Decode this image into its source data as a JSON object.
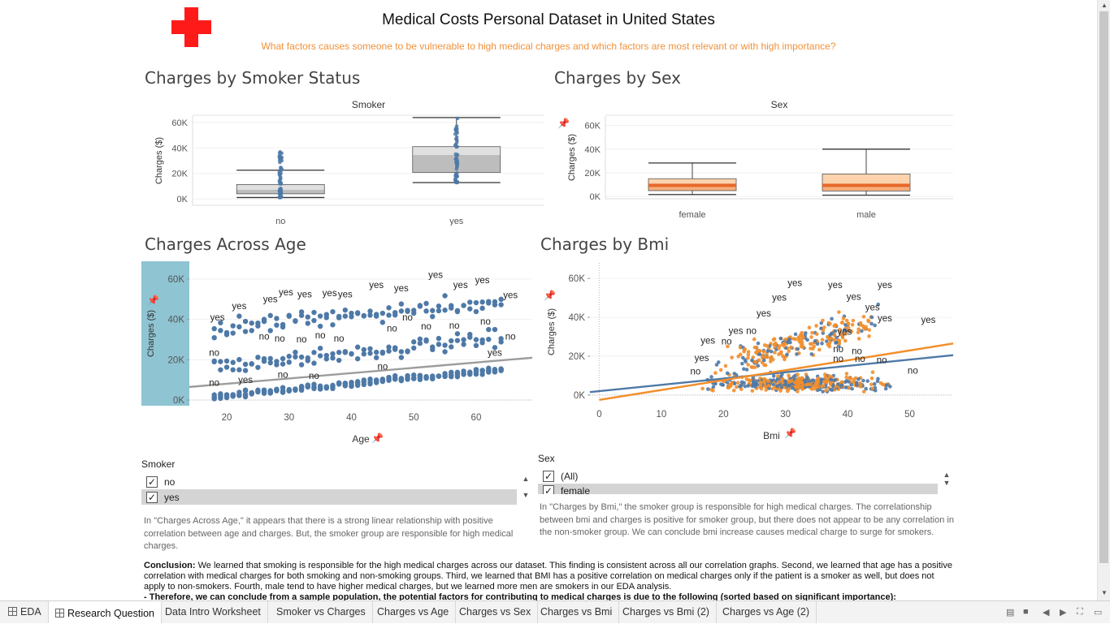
{
  "header": {
    "title": "Medical Costs Personal Dataset in United States",
    "subtitle": "What factors causes someone to be vulnerable to high medical charges and which factors are most relevant or with high importance?",
    "logo_icon": "red-cross-icon",
    "accent_color": "#f0913a",
    "logo_color": "#ff1a1a"
  },
  "sheets": {
    "smoker": "Charges by Smoker Status",
    "sex": "Charges by Sex",
    "age": "Charges Across Age",
    "bmi": "Charges by Bmi"
  },
  "filters": {
    "smoker": {
      "title": "Smoker",
      "items": [
        {
          "label": "no",
          "checked": true
        },
        {
          "label": "yes",
          "checked": true,
          "highlighted": true
        }
      ]
    },
    "sex": {
      "title": "Sex",
      "items": [
        {
          "label": "(All)",
          "checked": true
        },
        {
          "label": "female",
          "checked": true,
          "highlighted": true
        }
      ]
    }
  },
  "notes": {
    "age": "In \"Charges Across Age,\" it appears that there is a strong linear relationship with positive correlation between age and charges. But, the smoker group are responsible for high medical charges.",
    "bmi": "In \"Charges by Bmi,\" the smoker group is responsible for high medical charges. The correlationship between bmi and charges is positive for smoker group, but there does not appear to be any correlation in the non-smoker group. We can conclude bmi increase causes medical charge to surge for smokers."
  },
  "conclusion": {
    "label": "Conclusion:",
    "text": " We learned that smoking is responsible for the high medical charges across our dataset. This finding is consistent across all our correlation graphs. Second, we learned that age has a positive correlation with medical charges for both smoking and non-smoking groups. Third, we learned that BMI has a positive correlation on medical charges only if the patient is a smoker as well, but does not apply to non-smokers. Fourth, male tend to have higher medical charges, but we learned more men are smokers in our EDA analysis.",
    "therefore": "- Therefore, we can conclude from a sample population, the potential factors for contributing to medical charges is due to the following (sorted based on significant importance):"
  },
  "tabs": [
    {
      "label": "EDA",
      "icon": "grid-icon"
    },
    {
      "label": "Research Question",
      "icon": "grid-icon",
      "active": true
    },
    {
      "label": "Data Intro Worksheet"
    },
    {
      "label": "Smoker vs Charges"
    },
    {
      "label": "Charges vs Age"
    },
    {
      "label": "Charges vs Sex"
    },
    {
      "label": "Charges vs Bmi"
    },
    {
      "label": "Charges vs Bmi (2)"
    },
    {
      "label": "Charges vs Age (2)"
    }
  ],
  "chart_data": [
    {
      "id": "smoker_box",
      "type": "box",
      "header": "Smoker",
      "categories": [
        "no",
        "yes"
      ],
      "ylabel": "Charges ($)",
      "yticks": [
        "0K",
        "20K",
        "40K",
        "60K"
      ],
      "ylim": [
        -5000,
        65000
      ],
      "boxes": [
        {
          "category": "no",
          "min": 1100,
          "q1": 4000,
          "median": 7300,
          "q3": 11300,
          "max": 22500,
          "outlier_max": 37000
        },
        {
          "category": "yes",
          "min": 12800,
          "q1": 20800,
          "median": 34500,
          "q3": 41000,
          "max": 63800
        }
      ],
      "colors": {
        "box_light": "#e0e0e0",
        "box_dark": "#bdbdbd",
        "points": "#4e79a7"
      }
    },
    {
      "id": "sex_box",
      "type": "box",
      "header": "Sex",
      "categories": [
        "female",
        "male"
      ],
      "ylabel": "Charges ($)",
      "yticks": [
        "0K",
        "20K",
        "40K",
        "60K"
      ],
      "ylim": [
        -2000,
        68000
      ],
      "boxes": [
        {
          "category": "female",
          "min": 1600,
          "q1": 4900,
          "median": 9400,
          "q3": 15000,
          "max": 28300
        },
        {
          "category": "male",
          "min": 1100,
          "q1": 4600,
          "median": 9400,
          "q3": 19000,
          "max": 40000
        }
      ],
      "colors": {
        "box_light": "#fcd3ad",
        "box_dark": "#f6ad7b",
        "median": "#e5692a"
      }
    },
    {
      "id": "age_scatter",
      "type": "scatter",
      "xlabel": "Age",
      "ylabel": "Charges ($)",
      "xticks": [
        20,
        30,
        40,
        50,
        60
      ],
      "yticks": [
        "0K",
        "20K",
        "40K",
        "60K"
      ],
      "xlim": [
        14,
        69
      ],
      "ylim": [
        -2000,
        68000
      ],
      "series": [
        {
          "name": "no",
          "band": "base",
          "y_at_18": 1800,
          "y_at_64": 15000
        },
        {
          "name": "no",
          "band": "middle",
          "y_at_18": 17000,
          "y_at_64": 30000
        },
        {
          "name": "yes",
          "band": "upper",
          "y_at_18": 35000,
          "y_at_64": 49000
        }
      ],
      "trend": {
        "x": [
          14,
          69
        ],
        "y": [
          6500,
          21000
        ]
      },
      "colors": {
        "points": "#4e79a7",
        "trend": "#9c9c9c",
        "highlight": "#8fc4d3"
      }
    },
    {
      "id": "bmi_scatter",
      "type": "scatter",
      "xlabel": "Bmi",
      "ylabel": "Charges ($)",
      "xticks": [
        0,
        10,
        20,
        30,
        40,
        50
      ],
      "yticks": [
        "0K",
        "20K",
        "40K",
        "60K"
      ],
      "xlim": [
        -1.5,
        57
      ],
      "ylim": [
        -3000,
        68000
      ],
      "series": [
        {
          "name": "blue",
          "color": "#4e79a7"
        },
        {
          "name": "orange",
          "color": "#f28e2b"
        }
      ],
      "trend_blue": {
        "x": [
          -1.5,
          57
        ],
        "y": [
          1500,
          20500
        ]
      },
      "trend_orange": {
        "x": [
          0,
          57
        ],
        "y": [
          -2500,
          26500
        ]
      }
    }
  ],
  "chart_labels": {
    "age": [
      {
        "t": "yes",
        "x": 18.5,
        "y": 39500
      },
      {
        "t": "yes",
        "x": 22,
        "y": 45000
      },
      {
        "t": "yes",
        "x": 27,
        "y": 48500
      },
      {
        "t": "yes",
        "x": 29.5,
        "y": 52000
      },
      {
        "t": "yes",
        "x": 32.5,
        "y": 51000
      },
      {
        "t": "yes",
        "x": 36.5,
        "y": 51500
      },
      {
        "t": "yes",
        "x": 39,
        "y": 51000
      },
      {
        "t": "yes",
        "x": 44,
        "y": 55500
      },
      {
        "t": "yes",
        "x": 48,
        "y": 54000
      },
      {
        "t": "yes",
        "x": 53.5,
        "y": 60500
      },
      {
        "t": "yes",
        "x": 57.5,
        "y": 55500
      },
      {
        "t": "yes",
        "x": 61,
        "y": 58000
      },
      {
        "t": "yes",
        "x": 65.5,
        "y": 50500
      },
      {
        "t": "yes",
        "x": 63,
        "y": 22000
      },
      {
        "t": "yes",
        "x": 23,
        "y": 8500
      },
      {
        "t": "no",
        "x": 18,
        "y": 22000
      },
      {
        "t": "no",
        "x": 18,
        "y": 7000
      },
      {
        "t": "no",
        "x": 26,
        "y": 30000
      },
      {
        "t": "no",
        "x": 28.5,
        "y": 29000
      },
      {
        "t": "no",
        "x": 32,
        "y": 28500
      },
      {
        "t": "no",
        "x": 35,
        "y": 30500
      },
      {
        "t": "no",
        "x": 38,
        "y": 29000
      },
      {
        "t": "no",
        "x": 46.5,
        "y": 34000
      },
      {
        "t": "no",
        "x": 49,
        "y": 39500
      },
      {
        "t": "no",
        "x": 52,
        "y": 35000
      },
      {
        "t": "no",
        "x": 56.5,
        "y": 35500
      },
      {
        "t": "no",
        "x": 61.5,
        "y": 37500
      },
      {
        "t": "no",
        "x": 65.5,
        "y": 30000
      },
      {
        "t": "no",
        "x": 29,
        "y": 11000
      },
      {
        "t": "no",
        "x": 34,
        "y": 10500
      },
      {
        "t": "no",
        "x": 45,
        "y": 15000
      }
    ],
    "bmi": [
      {
        "t": "yes",
        "x": 31.5,
        "y": 56000
      },
      {
        "t": "yes",
        "x": 38,
        "y": 55000
      },
      {
        "t": "yes",
        "x": 46,
        "y": 55000
      },
      {
        "t": "yes",
        "x": 29,
        "y": 48500
      },
      {
        "t": "yes",
        "x": 41,
        "y": 49000
      },
      {
        "t": "yes",
        "x": 26.5,
        "y": 40500
      },
      {
        "t": "yes",
        "x": 44,
        "y": 43500
      },
      {
        "t": "yes",
        "x": 46,
        "y": 38000
      },
      {
        "t": "yes",
        "x": 53,
        "y": 37000
      },
      {
        "t": "yes",
        "x": 22,
        "y": 31500
      },
      {
        "t": "yes",
        "x": 39.5,
        "y": 31000
      },
      {
        "t": "yes",
        "x": 17.5,
        "y": 26500
      },
      {
        "t": "yes",
        "x": 16.5,
        "y": 17500
      },
      {
        "t": "no",
        "x": 24.5,
        "y": 31500
      },
      {
        "t": "no",
        "x": 20.5,
        "y": 26000
      },
      {
        "t": "no",
        "x": 38.5,
        "y": 22000
      },
      {
        "t": "no",
        "x": 41.5,
        "y": 21000
      },
      {
        "t": "no",
        "x": 38.5,
        "y": 17000
      },
      {
        "t": "no",
        "x": 42,
        "y": 17000
      },
      {
        "t": "no",
        "x": 45.5,
        "y": 16500
      },
      {
        "t": "no",
        "x": 15.5,
        "y": 10500
      },
      {
        "t": "no",
        "x": 50.5,
        "y": 11000
      }
    ]
  }
}
